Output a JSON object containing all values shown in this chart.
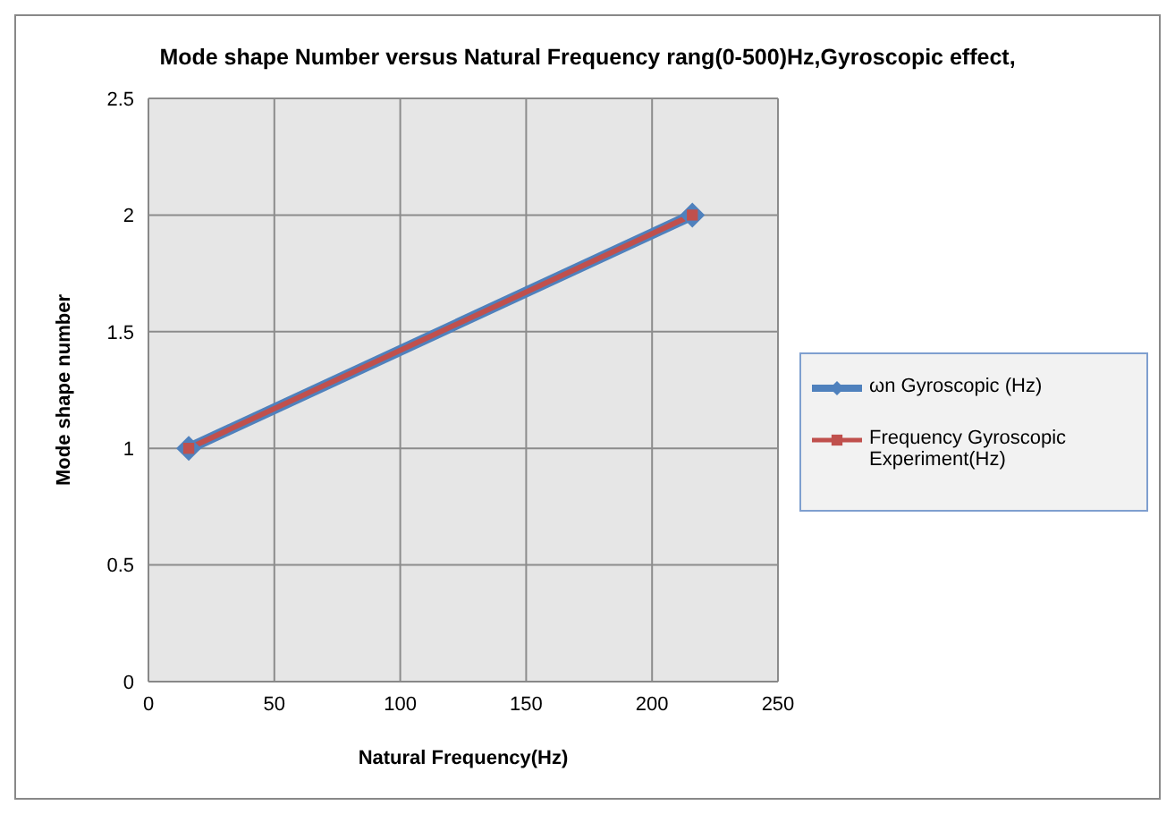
{
  "chart_data": {
    "type": "line",
    "title": "Mode shape Number versus Natural Frequency rang(0-500)Hz,Gyroscopic effect,",
    "xlabel": "Natural Frequency(Hz)",
    "ylabel": "Mode shape number",
    "xlim": [
      0,
      250
    ],
    "xticks": [
      0,
      50,
      100,
      150,
      200,
      250
    ],
    "ylim": [
      0,
      2.5
    ],
    "yticks": [
      0,
      0.5,
      1,
      1.5,
      2,
      2.5
    ],
    "grid": true,
    "x": [
      16,
      216
    ],
    "legend": "right",
    "line_style": "solid",
    "series": [
      {
        "name": "ωn Gyroscopic (Hz)",
        "color": "#4f81bd",
        "values": [
          1,
          2
        ],
        "marker": "diamond"
      },
      {
        "name": "Frequency Gyroscopic Experiment(Hz)",
        "color": "#c0504d",
        "values": [
          1,
          2
        ],
        "marker": "square"
      }
    ]
  }
}
